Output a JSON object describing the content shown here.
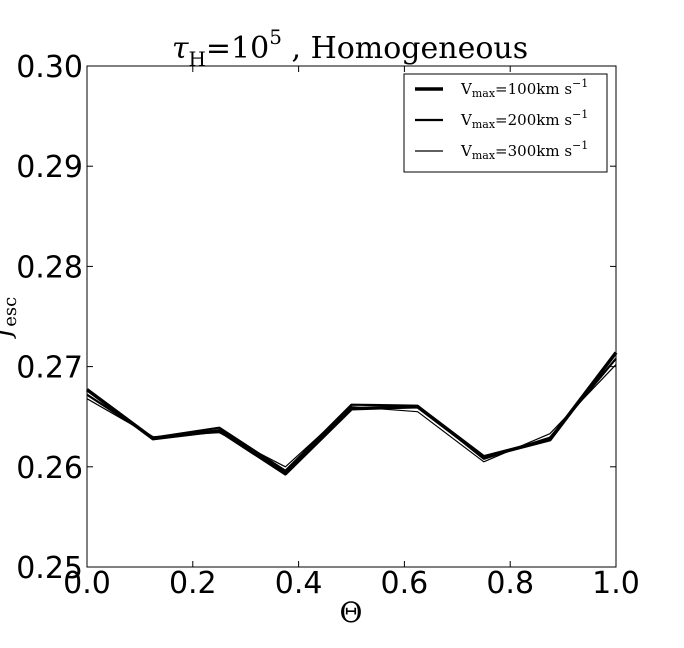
{
  "chart_data": {
    "type": "line",
    "title_main": "τ",
    "title_sub": "H",
    "title_eq": "=10",
    "title_sup": "5",
    "title_rest": " , Homogeneous",
    "xlabel": "Θ",
    "ylabel": "f",
    "ylabel_sub": "esc",
    "xlim": [
      0.0,
      1.0
    ],
    "ylim": [
      0.25,
      0.3
    ],
    "xticks": [
      "0.0",
      "0.2",
      "0.4",
      "0.6",
      "0.8",
      "1.0"
    ],
    "yticks": [
      "0.25",
      "0.26",
      "0.27",
      "0.28",
      "0.29",
      "0.30"
    ],
    "grid": false,
    "legend_position": "top-right",
    "x": [
      0.0,
      0.125,
      0.25,
      0.375,
      0.5,
      0.625,
      0.75,
      0.875,
      1.0
    ],
    "series": [
      {
        "name_pre": "V",
        "name_sub": "max",
        "name_mid": "=100km s",
        "name_sup": "−1",
        "values": [
          0.2677,
          0.2628,
          0.2636,
          0.2593,
          0.2658,
          0.266,
          0.261,
          0.2627,
          0.2714
        ],
        "width": 3.5
      },
      {
        "name_pre": "V",
        "name_sub": "max",
        "name_mid": "=200km s",
        "name_sup": "−1",
        "values": [
          0.2672,
          0.2629,
          0.2639,
          0.2596,
          0.2662,
          0.2661,
          0.2608,
          0.2629,
          0.2708
        ],
        "width": 2.2
      },
      {
        "name_pre": "V",
        "name_sub": "max",
        "name_mid": "=300km s",
        "name_sup": "−1",
        "values": [
          0.2668,
          0.263,
          0.2634,
          0.26,
          0.266,
          0.2655,
          0.2605,
          0.2633,
          0.2702
        ],
        "width": 1.2
      }
    ]
  }
}
